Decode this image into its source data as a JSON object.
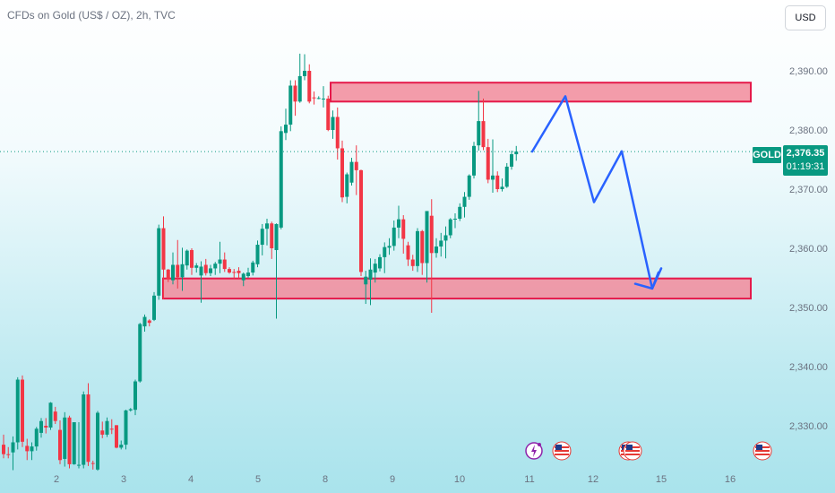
{
  "header": {
    "title": "CFDs on Gold (US$ / OZ), 2h, TVC",
    "currency_label": "USD"
  },
  "price_label": {
    "symbol": "GOLD",
    "price": "2,376.35",
    "countdown": "01:19:31"
  },
  "colors": {
    "up": "#089981",
    "down": "#f23645",
    "zone_fill": "#f28b9b",
    "zone_border": "#e5194a",
    "arrow": "#2962ff"
  },
  "event_icons": [
    "flash-event-icon",
    "us-flag-icon",
    "us-flag-icon",
    "us-flag-icon"
  ],
  "chart_data": {
    "type": "candlestick",
    "y_ticks": [
      "2,390.00",
      "2,380.00",
      "2,370.00",
      "2,360.00",
      "2,350.00",
      "2,340.00",
      "2,330.00"
    ],
    "y_tick_values": [
      2390,
      2380,
      2370,
      2360,
      2350,
      2340,
      2330
    ],
    "x_ticks": [
      "2",
      "3",
      "4",
      "5",
      "8",
      "9",
      "10",
      "11",
      "12",
      "15",
      "16"
    ],
    "ylim": [
      2322.5,
      2397.5
    ],
    "current_price": 2376.35,
    "candles": [
      [
        2326.8,
        2328.5,
        2324.5,
        2325.2
      ],
      [
        2325.2,
        2326.4,
        2324.5,
        2325.1
      ],
      [
        2325.5,
        2328.2,
        2322.5,
        2327.2
      ],
      [
        2327.2,
        2338.2,
        2326.0,
        2337.8
      ],
      [
        2337.8,
        2338.5,
        2326.4,
        2327.3
      ],
      [
        2326.6,
        2327.8,
        2324.2,
        2325.7
      ],
      [
        2325.7,
        2327.2,
        2324.2,
        2326.5
      ],
      [
        2326.5,
        2329.8,
        2325.8,
        2329.5
      ],
      [
        2328.8,
        2331.3,
        2328.0,
        2330.8
      ],
      [
        2330.0,
        2331.3,
        2328.7,
        2329.7
      ],
      [
        2329.7,
        2334.0,
        2329.3,
        2333.9
      ],
      [
        2332.4,
        2333.2,
        2330.3,
        2330.8
      ],
      [
        2329.3,
        2330.9,
        2323.5,
        2324.2
      ],
      [
        2324.4,
        2332.3,
        2323.1,
        2331.4
      ],
      [
        2331.4,
        2331.7,
        2322.8,
        2323.5
      ],
      [
        2323.5,
        2330.6,
        2323.4,
        2330.6
      ],
      [
        2323.3,
        2330.6,
        2322.8,
        2323.4
      ],
      [
        2323.4,
        2335.8,
        2322.8,
        2335.3
      ],
      [
        2335.3,
        2337.2,
        2323.2,
        2323.9
      ],
      [
        2323.7,
        2324.1,
        2322.6,
        2323.6
      ],
      [
        2322.6,
        2332.5,
        2322.4,
        2332.2
      ],
      [
        2329.2,
        2330.7,
        2327.9,
        2328.5
      ],
      [
        2328.5,
        2331.4,
        2328.1,
        2330.8
      ],
      [
        2329.5,
        2331.1,
        2328.6,
        2329.4
      ],
      [
        2330.1,
        2330.1,
        2326.2,
        2326.3
      ],
      [
        2326.3,
        2327.5,
        2326.0,
        2326.8
      ],
      [
        2326.8,
        2332.7,
        2326.0,
        2332.6
      ],
      [
        2332.6,
        2333.0,
        2332.4,
        2332.8
      ],
      [
        2332.7,
        2337.8,
        2331.8,
        2337.5
      ],
      [
        2337.5,
        2347.4,
        2337.3,
        2347.2
      ],
      [
        2346.8,
        2348.8,
        2345.9,
        2348.4
      ],
      [
        2347.8,
        2348.0,
        2346.8,
        2347.4
      ],
      [
        2347.9,
        2352.6,
        2347.7,
        2352.0
      ],
      [
        2352.0,
        2364.0,
        2351.3,
        2363.4
      ],
      [
        2363.4,
        2365.4,
        2351.4,
        2356.4
      ],
      [
        2356.4,
        2356.5,
        2354.3,
        2354.8
      ],
      [
        2354.6,
        2359.3,
        2353.9,
        2357.2
      ],
      [
        2357.2,
        2361.4,
        2353.2,
        2355.1
      ],
      [
        2355.1,
        2360.1,
        2352.8,
        2357.3
      ],
      [
        2357.1,
        2359.8,
        2356.4,
        2359.6
      ],
      [
        2359.7,
        2360.0,
        2355.5,
        2356.7
      ],
      [
        2356.7,
        2357.5,
        2355.9,
        2357.1
      ],
      [
        2355.4,
        2357.8,
        2350.8,
        2356.9
      ],
      [
        2357.2,
        2358.2,
        2355.4,
        2355.8
      ],
      [
        2355.8,
        2357.2,
        2355.3,
        2356.6
      ],
      [
        2356.6,
        2357.7,
        2355.5,
        2357.4
      ],
      [
        2357.4,
        2361.1,
        2355.8,
        2358.1
      ],
      [
        2358.1,
        2359.3,
        2356.0,
        2356.5
      ],
      [
        2356.5,
        2356.8,
        2355.7,
        2355.9
      ],
      [
        2356.0,
        2356.5,
        2354.9,
        2355.9
      ],
      [
        2356.2,
        2356.8,
        2354.9,
        2355.8
      ],
      [
        2354.6,
        2355.9,
        2353.6,
        2355.7
      ],
      [
        2355.3,
        2356.7,
        2355.0,
        2355.9
      ],
      [
        2355.9,
        2357.9,
        2355.4,
        2357.6
      ],
      [
        2357.3,
        2361.3,
        2356.8,
        2360.6
      ],
      [
        2360.6,
        2364.1,
        2358.8,
        2363.3
      ],
      [
        2363.3,
        2365.0,
        2360.5,
        2364.2
      ],
      [
        2364.2,
        2364.5,
        2358.2,
        2360.0
      ],
      [
        2359.7,
        2364.2,
        2348.1,
        2364.1
      ],
      [
        2363.5,
        2380.6,
        2363.2,
        2379.8
      ],
      [
        2379.5,
        2383.6,
        2378.3,
        2380.9
      ],
      [
        2380.9,
        2388.4,
        2379.8,
        2387.5
      ],
      [
        2387.5,
        2388.4,
        2382.4,
        2384.8
      ],
      [
        2384.8,
        2392.9,
        2384.6,
        2389.1
      ],
      [
        2389.1,
        2392.8,
        2388.4,
        2390.0
      ],
      [
        2390.0,
        2391.1,
        2384.5,
        2384.8
      ],
      [
        2385.5,
        2386.5,
        2384.3,
        2385.4
      ],
      [
        2385.4,
        2385.7,
        2385.2,
        2385.4
      ],
      [
        2385.3,
        2387.4,
        2383.8,
        2385.3
      ],
      [
        2385.3,
        2385.8,
        2379.8,
        2380.0
      ],
      [
        2380.0,
        2383.3,
        2378.5,
        2382.2
      ],
      [
        2382.2,
        2383.8,
        2375.0,
        2376.9
      ],
      [
        2376.9,
        2378.2,
        2367.8,
        2368.6
      ],
      [
        2368.7,
        2372.8,
        2367.6,
        2372.5
      ],
      [
        2371.1,
        2375.3,
        2370.6,
        2374.6
      ],
      [
        2374.6,
        2377.4,
        2369.0,
        2373.2
      ],
      [
        2373.2,
        2373.3,
        2355.3,
        2356.0
      ],
      [
        2353.9,
        2356.2,
        2350.6,
        2355.2
      ],
      [
        2354.7,
        2358.3,
        2350.4,
        2356.4
      ],
      [
        2355.9,
        2358.2,
        2354.2,
        2357.4
      ],
      [
        2356.6,
        2359.0,
        2356.1,
        2358.5
      ],
      [
        2358.5,
        2361.0,
        2355.8,
        2360.2
      ],
      [
        2360.1,
        2361.7,
        2358.9,
        2360.4
      ],
      [
        2360.4,
        2364.7,
        2359.6,
        2363.5
      ],
      [
        2363.5,
        2367.2,
        2361.7,
        2364.9
      ],
      [
        2364.9,
        2365.6,
        2359.1,
        2361.6
      ],
      [
        2360.5,
        2361.1,
        2357.0,
        2358.1
      ],
      [
        2358.1,
        2358.9,
        2356.2,
        2357.0
      ],
      [
        2357.0,
        2363.4,
        2356.0,
        2362.9
      ],
      [
        2362.9,
        2363.1,
        2355.5,
        2357.5
      ],
      [
        2357.5,
        2365.9,
        2354.2,
        2366.3
      ],
      [
        2365.5,
        2368.3,
        2349.1,
        2359.2
      ],
      [
        2359.2,
        2361.7,
        2358.4,
        2360.3
      ],
      [
        2360.3,
        2362.6,
        2358.6,
        2361.3
      ],
      [
        2361.3,
        2363.7,
        2358.3,
        2362.2
      ],
      [
        2362.2,
        2365.1,
        2361.7,
        2364.9
      ],
      [
        2364.9,
        2365.9,
        2363.4,
        2365.0
      ],
      [
        2365.0,
        2367.6,
        2364.6,
        2367.0
      ],
      [
        2367.0,
        2369.5,
        2365.2,
        2368.7
      ],
      [
        2368.7,
        2372.5,
        2368.2,
        2372.3
      ],
      [
        2372.3,
        2378.0,
        2371.8,
        2377.3
      ],
      [
        2377.4,
        2386.6,
        2376.5,
        2381.5
      ],
      [
        2381.5,
        2385.3,
        2376.6,
        2377.1
      ],
      [
        2377.1,
        2378.5,
        2371.0,
        2371.6
      ],
      [
        2371.6,
        2378.4,
        2369.4,
        2372.3
      ],
      [
        2372.3,
        2373.0,
        2369.5,
        2370.0
      ],
      [
        2370.0,
        2371.8,
        2369.6,
        2370.4
      ],
      [
        2370.4,
        2374.4,
        2370.2,
        2373.8
      ],
      [
        2373.8,
        2376.5,
        2373.3,
        2375.9
      ],
      [
        2375.9,
        2377.3,
        2374.8,
        2376.35
      ]
    ],
    "zones": [
      {
        "from": 2384.8,
        "to": 2388.0
      },
      {
        "from": 2351.5,
        "to": 2354.9
      }
    ],
    "projection_path": [
      2376.35,
      2385.7,
      2367.8,
      2376.4,
      2353.2,
      2356.6
    ]
  }
}
